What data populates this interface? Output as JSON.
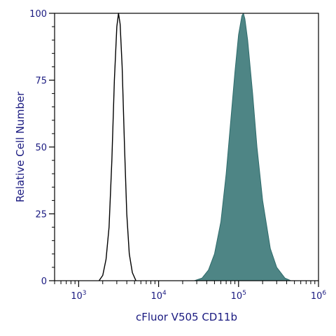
{
  "chart_data": {
    "type": "area",
    "xlabel": "cFluor V505 CD11b",
    "ylabel": "Relative Cell Number",
    "x_scale": "log",
    "xlim": [
      500,
      1000000
    ],
    "ylim": [
      0,
      100
    ],
    "x_ticks": [
      {
        "value": 1000,
        "base": "10",
        "exp": "3"
      },
      {
        "value": 10000,
        "base": "10",
        "exp": "4"
      },
      {
        "value": 100000,
        "base": "10",
        "exp": "5"
      },
      {
        "value": 1000000,
        "base": "10",
        "exp": "6"
      }
    ],
    "y_ticks": [
      {
        "value": 0,
        "label": "0"
      },
      {
        "value": 25,
        "label": "25"
      },
      {
        "value": 50,
        "label": "50"
      },
      {
        "value": 75,
        "label": "75"
      },
      {
        "value": 100,
        "label": "100"
      }
    ],
    "series": [
      {
        "style": "outline",
        "stroke": "#000000",
        "fill": "none",
        "points": [
          [
            1800,
            0
          ],
          [
            2000,
            2
          ],
          [
            2200,
            8
          ],
          [
            2400,
            20
          ],
          [
            2600,
            45
          ],
          [
            2800,
            75
          ],
          [
            3000,
            95
          ],
          [
            3150,
            100
          ],
          [
            3300,
            96
          ],
          [
            3500,
            80
          ],
          [
            3750,
            50
          ],
          [
            4000,
            25
          ],
          [
            4300,
            10
          ],
          [
            4700,
            3
          ],
          [
            5200,
            0
          ]
        ]
      },
      {
        "style": "filled",
        "stroke": "#2e6b6b",
        "fill": "#4e8585",
        "points": [
          [
            28000,
            0
          ],
          [
            35000,
            1
          ],
          [
            42000,
            4
          ],
          [
            50000,
            10
          ],
          [
            60000,
            22
          ],
          [
            70000,
            40
          ],
          [
            80000,
            60
          ],
          [
            90000,
            78
          ],
          [
            100000,
            92
          ],
          [
            110000,
            99
          ],
          [
            115000,
            100
          ],
          [
            120000,
            98
          ],
          [
            130000,
            90
          ],
          [
            150000,
            70
          ],
          [
            170000,
            50
          ],
          [
            200000,
            30
          ],
          [
            250000,
            12
          ],
          [
            300000,
            5
          ],
          [
            380000,
            1
          ],
          [
            450000,
            0
          ]
        ]
      }
    ],
    "grid": false,
    "legend": "none"
  }
}
